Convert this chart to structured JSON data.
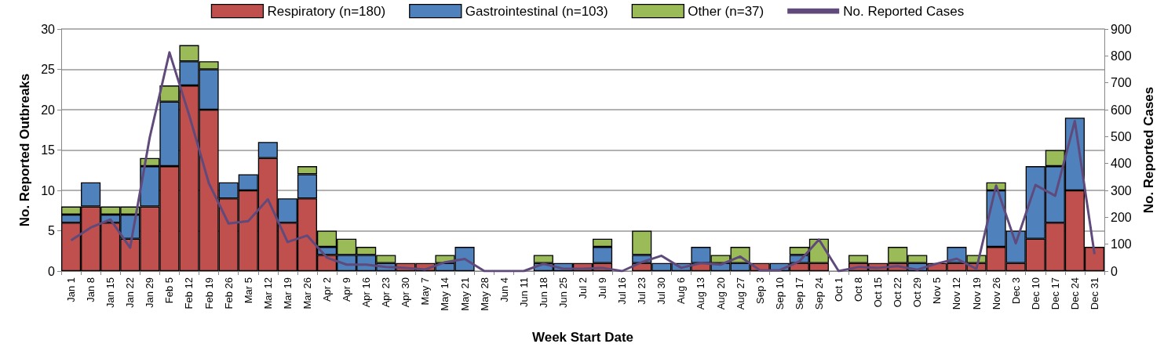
{
  "chart_data": {
    "type": "bar",
    "stacked": true,
    "xlabel": "Week Start Date",
    "ylabel": "No. Reported Outbreaks",
    "y2label": "No. Reported Cases",
    "categories": [
      "Jan 1",
      "Jan 8",
      "Jan 15",
      "Jan 22",
      "Jan 29",
      "Feb 5",
      "Feb 12",
      "Feb 19",
      "Feb 26",
      "Mar 5",
      "Mar 12",
      "Mar 19",
      "Mar 26",
      "Apr 2",
      "Apr 9",
      "Apr 16",
      "Apr 23",
      "Apr 30",
      "May 7",
      "May 14",
      "May 21",
      "May 28",
      "Jun 4",
      "Jun 11",
      "Jun 18",
      "Jun 25",
      "Jul 2",
      "Jul 9",
      "Jul 16",
      "Jul 23",
      "Jul 30",
      "Aug 6",
      "Aug 13",
      "Aug 20",
      "Aug 27",
      "Sep 3",
      "Sep 10",
      "Sep 17",
      "Sep 24",
      "Oct 1",
      "Oct 8",
      "Oct 15",
      "Oct 22",
      "Oct 29",
      "Nov 5",
      "Nov 12",
      "Nov 19",
      "Nov 26",
      "Dec 3",
      "Dec 10",
      "Dec 17",
      "Dec 24",
      "Dec 31"
    ],
    "series": [
      {
        "name": "Respiratory (n=180)",
        "color": "#c0504d",
        "values": [
          6,
          8,
          6,
          4,
          8,
          13,
          23,
          20,
          9,
          10,
          14,
          6,
          9,
          2,
          0,
          0,
          0,
          1,
          1,
          0,
          0,
          0,
          0,
          0,
          0,
          0,
          1,
          1,
          0,
          1,
          0,
          0,
          1,
          0,
          0,
          1,
          0,
          1,
          1,
          0,
          1,
          1,
          1,
          0,
          1,
          1,
          1,
          3,
          1,
          4,
          6,
          10,
          3
        ]
      },
      {
        "name": "Gastrointestinal (n=103)",
        "color": "#4f81bd",
        "values": [
          1,
          3,
          1,
          3,
          5,
          8,
          3,
          5,
          2,
          2,
          2,
          3,
          3,
          1,
          2,
          2,
          1,
          0,
          0,
          1,
          3,
          0,
          0,
          0,
          1,
          1,
          0,
          2,
          0,
          1,
          1,
          1,
          2,
          1,
          1,
          0,
          1,
          1,
          0,
          0,
          0,
          0,
          0,
          1,
          0,
          2,
          0,
          7,
          4,
          9,
          7,
          9,
          0
        ]
      },
      {
        "name": "Other (n=37)",
        "color": "#9bbb59",
        "values": [
          1,
          0,
          1,
          1,
          1,
          2,
          2,
          1,
          0,
          0,
          0,
          0,
          1,
          2,
          2,
          1,
          1,
          0,
          0,
          1,
          0,
          0,
          0,
          0,
          1,
          0,
          0,
          1,
          0,
          3,
          0,
          0,
          0,
          1,
          2,
          0,
          0,
          1,
          3,
          0,
          1,
          0,
          2,
          1,
          0,
          0,
          1,
          1,
          0,
          0,
          2,
          0,
          0
        ]
      },
      {
        "name": "No. Reported Cases",
        "type": "line",
        "axis": "y2",
        "color": "#604a7b",
        "values": [
          114,
          162,
          192,
          87,
          498,
          813,
          580,
          327,
          177,
          186,
          267,
          108,
          132,
          50,
          24,
          24,
          15,
          12,
          6,
          33,
          45,
          0,
          0,
          0,
          27,
          9,
          9,
          12,
          0,
          33,
          57,
          12,
          30,
          24,
          54,
          3,
          3,
          36,
          117,
          0,
          15,
          12,
          18,
          5,
          28,
          46,
          8,
          318,
          103,
          320,
          280,
          558,
          63
        ]
      }
    ],
    "ylim": [
      0,
      30
    ],
    "yticks": [
      0,
      5,
      10,
      15,
      20,
      25,
      30
    ],
    "y2lim": [
      0,
      900
    ],
    "y2ticks": [
      0,
      100,
      200,
      300,
      400,
      500,
      600,
      700,
      800,
      900
    ],
    "grid": "y",
    "legend": "top",
    "marker": "none",
    "line_style": "solid"
  }
}
